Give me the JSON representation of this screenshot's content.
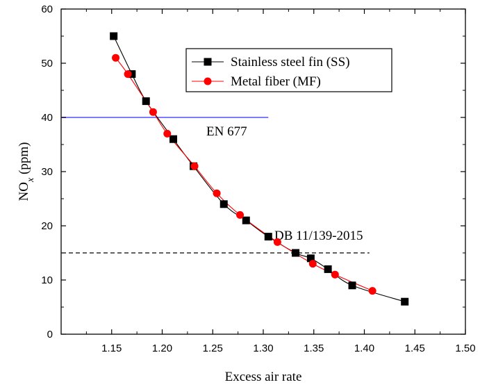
{
  "chart_data": {
    "type": "line",
    "xlabel": "Excess air rate",
    "ylabel_main": "NO",
    "ylabel_sub": "x",
    "ylabel_tail": " (ppm)",
    "xlim": [
      1.1,
      1.5
    ],
    "ylim": [
      0,
      60
    ],
    "x_ticks": [
      1.15,
      1.2,
      1.25,
      1.3,
      1.35,
      1.4,
      1.45,
      1.5
    ],
    "x_tick_labels": [
      "1.15",
      "1.20",
      "1.25",
      "1.30",
      "1.35",
      "1.40",
      "1.45",
      "1.50"
    ],
    "y_ticks": [
      0,
      10,
      20,
      30,
      40,
      50,
      60
    ],
    "y_tick_labels": [
      "0",
      "10",
      "20",
      "30",
      "40",
      "50",
      "60"
    ],
    "legend_position": "top-right",
    "series": [
      {
        "name": "Stainless steel fin (SS)",
        "color": "#000000",
        "marker": "square",
        "x": [
          1.152,
          1.17,
          1.184,
          1.211,
          1.231,
          1.261,
          1.283,
          1.305,
          1.332,
          1.347,
          1.364,
          1.388,
          1.44
        ],
        "y": [
          55,
          48,
          43,
          36,
          31,
          24,
          21,
          18,
          15,
          14,
          12,
          9,
          6
        ]
      },
      {
        "name": "Metal fiber (MF)",
        "color": "#ff0000",
        "marker": "circle",
        "x": [
          1.154,
          1.166,
          1.191,
          1.205,
          1.232,
          1.254,
          1.277,
          1.314,
          1.349,
          1.371,
          1.408
        ],
        "y": [
          51,
          48,
          41,
          37,
          31,
          26,
          22,
          17,
          13,
          11,
          8
        ]
      }
    ],
    "reference_lines": [
      {
        "label": "EN 677",
        "y": 40,
        "x_end": 1.305,
        "color": "#7b7bff",
        "style": "solid"
      },
      {
        "label": "DB 11/139-2015",
        "y": 15,
        "x_end": 1.405,
        "color": "#000000",
        "style": "dashed"
      }
    ]
  }
}
